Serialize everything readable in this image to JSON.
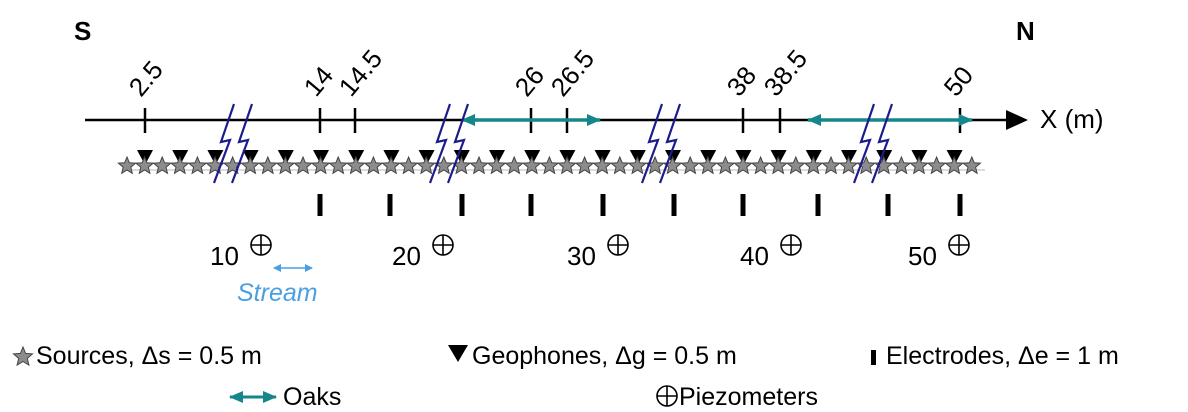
{
  "directions": {
    "south": "S",
    "north": "N"
  },
  "axis": {
    "label": "X (m)",
    "ticks": [
      "2.5",
      "14",
      "14.5",
      "26",
      "26.5",
      "38",
      "38.5",
      "50"
    ]
  },
  "piezometers": [
    {
      "x": 10,
      "label": "10"
    },
    {
      "x": 20,
      "label": "20"
    },
    {
      "x": 30,
      "label": "30"
    },
    {
      "x": 40,
      "label": "40"
    },
    {
      "x": 50,
      "label": "50"
    }
  ],
  "stream": {
    "label": "Stream"
  },
  "legend": {
    "sources": "Sources, Δs = 0.5 m",
    "geophones": "Geophones, Δg = 0.5 m",
    "electrodes": "Electrodes, Δe = 1 m",
    "oaks": "Oaks",
    "piezometers": "Piezometers"
  },
  "colors": {
    "oak": "#15878a",
    "stream": "#4a9fe0",
    "break": "#1c1c8c",
    "source": "#8c8c8c"
  }
}
